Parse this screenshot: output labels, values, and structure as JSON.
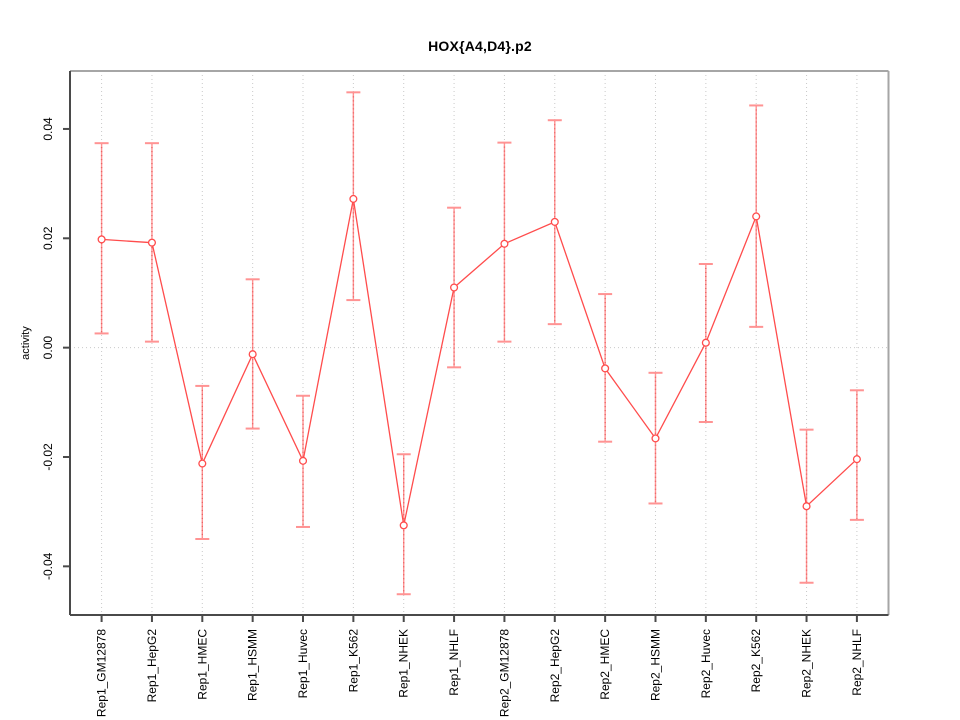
{
  "chart_data": {
    "type": "line",
    "title": "HOX{A4,D4}.p2",
    "xlabel": "",
    "ylabel": "activity",
    "legend": "none",
    "grid": "vertical dotted gridline per category; dotted horizontal line at y=0",
    "ylim": [
      -0.0489,
      0.0506
    ],
    "yticks": [
      -0.04,
      -0.02,
      0,
      0.02,
      0.04
    ],
    "ytick_labels": [
      "-0.04",
      "-0.02",
      "0.00",
      "0.02",
      "0.04"
    ],
    "categories": [
      "Rep1_GM12878",
      "Rep1_HepG2",
      "Rep1_HMEC",
      "Rep1_HSMM",
      "Rep1_Huvec",
      "Rep1_K562",
      "Rep1_NHEK",
      "Rep1_NHLF",
      "Rep2_GM12878",
      "Rep2_HepG2",
      "Rep2_HMEC",
      "Rep2_HSMM",
      "Rep2_Huvec",
      "Rep2_K562",
      "Rep2_NHEK",
      "Rep2_NHLF"
    ],
    "series": [
      {
        "name": "activity",
        "marker": "open-circle",
        "values": [
          0.0198,
          0.0192,
          -0.0212,
          -0.0012,
          -0.0207,
          0.0272,
          -0.0325,
          0.011,
          0.019,
          0.023,
          -0.0038,
          -0.0166,
          0.0009,
          0.024,
          -0.029,
          -0.0204
        ],
        "error_low": [
          0.0026,
          0.0011,
          -0.035,
          -0.0148,
          -0.0328,
          0.0087,
          -0.0451,
          -0.0036,
          0.0011,
          0.0043,
          -0.0172,
          -0.0285,
          -0.0136,
          0.0038,
          -0.043,
          -0.0315
        ],
        "error_high": [
          0.0374,
          0.0374,
          -0.007,
          0.0125,
          -0.0088,
          0.0467,
          -0.0195,
          0.0256,
          0.0375,
          0.0416,
          0.0098,
          -0.0046,
          0.0153,
          0.0443,
          -0.015,
          -0.0078
        ]
      }
    ],
    "colors": {
      "line": "#ff4c4c",
      "point": "#ff4c4c",
      "error_bar": "#ff9393",
      "error_dot_overlay": "#e85f5f",
      "grid": "#c9c9c9",
      "box_light": "#a6a6a6",
      "axis_dark": "#4a4a4a",
      "text": "#000000",
      "background": "#ffffff"
    }
  }
}
